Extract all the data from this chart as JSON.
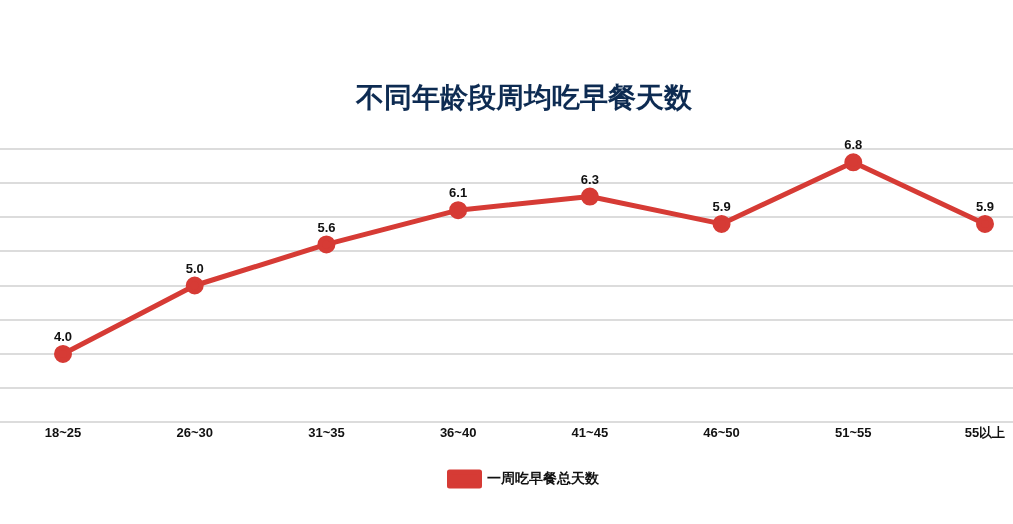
{
  "chart_data": {
    "type": "line",
    "title": "不同年龄段周均吃早餐天数",
    "categories": [
      "18~25",
      "26~30",
      "31~35",
      "36~40",
      "41~45",
      "46~50",
      "51~55",
      "55以上"
    ],
    "series": [
      {
        "name": "一周吃早餐总天数",
        "color": "#d63b35",
        "values": [
          4.0,
          5.0,
          5.6,
          6.1,
          6.3,
          5.9,
          6.8,
          5.9
        ],
        "value_labels": [
          "4.0",
          "5.0",
          "5.6",
          "6.1",
          "6.3",
          "5.9",
          "6.8",
          "5.9"
        ]
      }
    ],
    "ylim": [
      3,
      7
    ],
    "yticks": [
      {
        "value": 3,
        "label": null
      },
      {
        "value": 3.5,
        "label": null
      },
      {
        "value": 4,
        "label": null
      },
      {
        "value": 4.5,
        "label": null
      },
      {
        "value": 5,
        "label": null
      },
      {
        "value": 5.5,
        "label": null
      },
      {
        "value": 6,
        "label": null
      },
      {
        "value": 6.5,
        "label": null
      },
      {
        "value": 7,
        "label": null
      }
    ],
    "grid": "y",
    "legend": "bottom",
    "tick_labels": "x",
    "marker": "circle"
  }
}
